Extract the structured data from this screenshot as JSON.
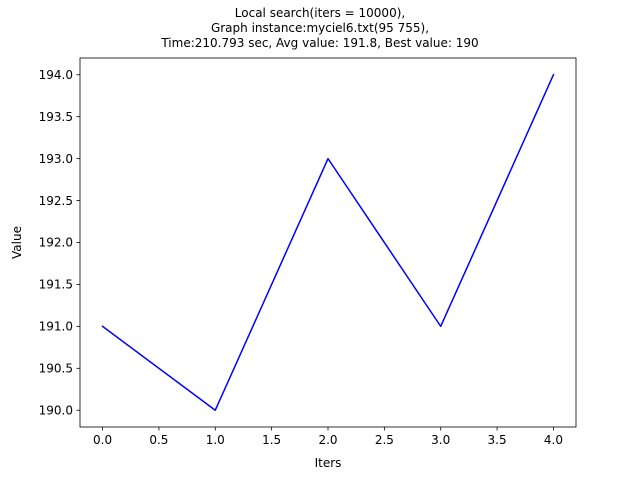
{
  "chart_data": {
    "type": "line",
    "title_lines": [
      "Local search(iters = 10000),",
      "Graph instance:myciel6.txt(95 755),",
      "Time:210.793 sec, Avg value: 191.8, Best value: 190"
    ],
    "xlabel": "Iters",
    "ylabel": "Value",
    "x": [
      0,
      1,
      2,
      3,
      4
    ],
    "series": [
      {
        "values": [
          191,
          190,
          193,
          191,
          194
        ],
        "color": "#0000ff"
      }
    ],
    "xlim": [
      -0.2,
      4.2
    ],
    "ylim": [
      189.8,
      194.2
    ],
    "xticks": [
      0.0,
      0.5,
      1.0,
      1.5,
      2.0,
      2.5,
      3.0,
      3.5,
      4.0
    ],
    "xtick_labels": [
      "0.0",
      "0.5",
      "1.0",
      "1.5",
      "2.0",
      "2.5",
      "3.0",
      "3.5",
      "4.0"
    ],
    "yticks": [
      190.0,
      190.5,
      191.0,
      191.5,
      192.0,
      192.5,
      193.0,
      193.5,
      194.0
    ],
    "ytick_labels": [
      "190.0",
      "190.5",
      "191.0",
      "191.5",
      "192.0",
      "192.5",
      "193.0",
      "193.5",
      "194.0"
    ],
    "grid": false,
    "legend": "none"
  }
}
